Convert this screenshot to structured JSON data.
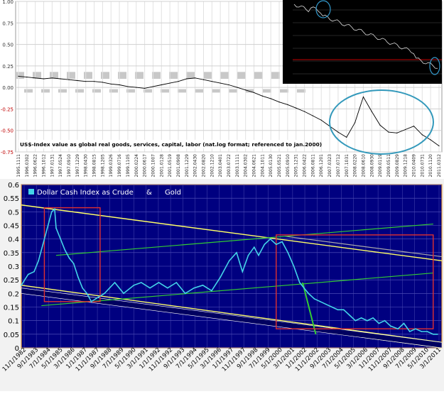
{
  "chart_data": [
    {
      "type": "line",
      "title": "US$-Index value as global real goods, services, capital, labor (nat.log format; referenced to jan.2000)",
      "xlabel": "",
      "ylabel": "",
      "ylim": [
        -0.75,
        1.0
      ],
      "grid": true,
      "yticks": [
        "1.00",
        "0.75",
        "0.50",
        "0.25",
        "0.00",
        "-0.25",
        "-0.50",
        "-0.75"
      ],
      "xticks": [
        "1995.1111",
        "1996.0302",
        "1996.0622",
        "1996.1012",
        "1997.0131",
        "1997.0524",
        "1997.0910",
        "1997.1229",
        "1998.0430",
        "1998.0815",
        "1998.1205",
        "1999.0326",
        "1999.0716",
        "1999.1105",
        "2000.0224",
        "2000.0617",
        "2000.1007",
        "2001.0128",
        "2001.0519",
        "2001.0908",
        "2001.1229",
        "2002.0430",
        "2002.0820",
        "2002.1210",
        "2003.0401",
        "2003.0722",
        "2003.1111",
        "2004.0302",
        "2004.0621",
        "2004.1011",
        "2005.0130",
        "2005.0521",
        "2005.0910",
        "2005.1231",
        "2006.0422",
        "2006.0811",
        "2006.1201",
        "2007.0323",
        "2007.0712",
        "2007.1031",
        "2008.0220",
        "2008.0610",
        "2008.0930",
        "2009.0119",
        "2009.0511",
        "2009.0829",
        "2009.1218",
        "2010.0409",
        "2010.0731",
        "2010.1120",
        "2011.0312"
      ],
      "series": [
        {
          "name": "",
          "x": [
            0,
            1,
            2,
            3,
            4,
            5,
            6,
            7,
            8,
            9,
            10,
            11,
            12,
            13,
            14,
            15,
            16,
            17,
            18,
            19,
            20,
            21,
            22,
            23,
            24,
            25,
            26,
            27,
            28,
            29,
            30,
            31,
            32,
            33,
            34,
            35,
            36,
            37,
            38,
            39,
            40,
            41,
            42,
            43,
            44,
            45,
            46,
            47,
            48,
            49,
            50
          ],
          "values": [
            0.13,
            0.12,
            0.11,
            0.1,
            0.11,
            0.1,
            0.09,
            0.08,
            0.07,
            0.07,
            0.06,
            0.04,
            0.03,
            0.01,
            0.0,
            -0.01,
            0.01,
            0.03,
            0.05,
            0.07,
            0.1,
            0.11,
            0.09,
            0.07,
            0.05,
            0.03,
            0.0,
            -0.03,
            -0.06,
            -0.1,
            -0.13,
            -0.17,
            -0.2,
            -0.24,
            -0.28,
            -0.33,
            -0.38,
            -0.45,
            -0.52,
            -0.58,
            -0.41,
            -0.11,
            -0.28,
            -0.44,
            -0.52,
            -0.53,
            -0.49,
            -0.45,
            -0.55,
            -0.61,
            -0.68
          ]
        }
      ]
    },
    {
      "type": "line",
      "title": "",
      "xlabel": "",
      "ylabel": "",
      "ylim": [
        0,
        0.6
      ],
      "grid": true,
      "yticks": [
        "0.6",
        "0.55",
        "0.5",
        "0.45",
        "0.4",
        "0.35",
        "0.3",
        "0.25",
        "0.2",
        "0.15",
        "0.1",
        "0.05",
        "0"
      ],
      "xticks": [
        "11/1/1982",
        "9/1/1983",
        "7/1/1984",
        "5/1/1985",
        "3/1/1986",
        "1/1/1987",
        "11/1/1987",
        "9/1/1988",
        "7/1/1989",
        "5/1/1990",
        "3/1/1991",
        "1/1/1992",
        "11/1/1992",
        "9/1/1993",
        "7/1/1994",
        "5/1/1995",
        "3/1/1996",
        "1/1/1997",
        "11/1/1997",
        "9/1/1998",
        "7/1/1999",
        "5/1/2000",
        "3/1/2001",
        "1/1/2002",
        "11/1/2002",
        "9/1/2003",
        "7/1/2004",
        "5/1/2005",
        "3/1/2006",
        "1/1/2007",
        "11/1/2007",
        "9/1/2008",
        "7/1/2009",
        "5/1/2010",
        "3/1/2011"
      ],
      "legend": {
        "entries": [
          "Dollar Cash Index as Crude",
          "&",
          "Gold"
        ],
        "position": "top-left"
      },
      "series": [
        {
          "name": "Dollar Cash Index as Crude",
          "x": [
            1982.83,
            1983.3,
            1983.7,
            1984.0,
            1984.3,
            1984.6,
            1984.9,
            1985.1,
            1985.2,
            1985.5,
            1985.8,
            1986.1,
            1986.4,
            1986.7,
            1987.0,
            1987.3,
            1987.6,
            1987.9,
            1988.5,
            1989.2,
            1989.8,
            1990.5,
            1991.0,
            1991.6,
            1992.2,
            1992.8,
            1993.4,
            1994.0,
            1994.6,
            1995.2,
            1995.8,
            1996.4,
            1997.0,
            1997.5,
            1997.9,
            1998.3,
            1998.7,
            1999.0,
            1999.4,
            1999.8,
            2000.2,
            2000.6,
            2001.0,
            2001.4,
            2001.8,
            2002.1,
            2002.4,
            2002.8,
            2003.2,
            2003.6,
            2004.0,
            2004.4,
            2004.8,
            2005.2,
            2005.6,
            2006.0,
            2006.4,
            2006.8,
            2007.2,
            2007.6,
            2008.0,
            2008.5,
            2008.9,
            2009.3,
            2009.7,
            2010.1,
            2010.5,
            2010.9,
            2011.2
          ],
          "values": [
            0.23,
            0.27,
            0.28,
            0.32,
            0.38,
            0.44,
            0.5,
            0.51,
            0.44,
            0.4,
            0.36,
            0.33,
            0.31,
            0.26,
            0.22,
            0.2,
            0.17,
            0.18,
            0.2,
            0.24,
            0.2,
            0.23,
            0.24,
            0.22,
            0.24,
            0.22,
            0.24,
            0.2,
            0.22,
            0.23,
            0.21,
            0.26,
            0.32,
            0.35,
            0.28,
            0.34,
            0.37,
            0.34,
            0.38,
            0.4,
            0.38,
            0.39,
            0.35,
            0.3,
            0.24,
            0.22,
            0.2,
            0.18,
            0.17,
            0.16,
            0.15,
            0.14,
            0.14,
            0.12,
            0.1,
            0.11,
            0.1,
            0.11,
            0.09,
            0.1,
            0.08,
            0.07,
            0.09,
            0.06,
            0.07,
            0.06,
            0.06,
            0.05,
            0.05
          ]
        }
      ]
    }
  ],
  "inset": {
    "description": ""
  }
}
